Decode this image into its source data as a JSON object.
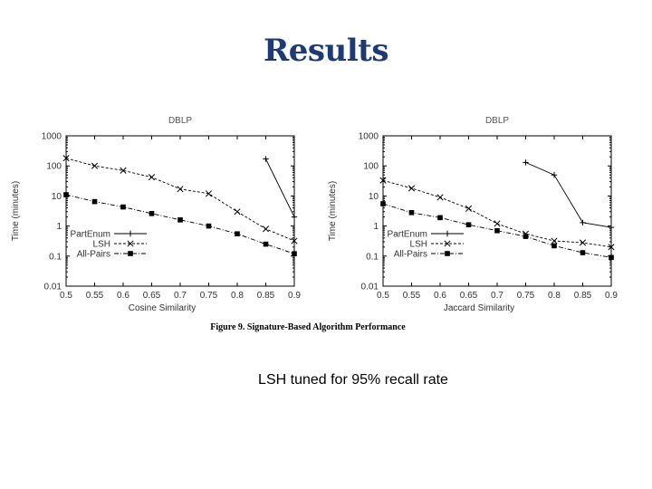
{
  "slide": {
    "title": "Results",
    "figure_caption": "Figure 9.  Signature-Based Algorithm Performance",
    "footnote": "LSH tuned for 95% recall rate"
  },
  "chart_data": [
    {
      "type": "line",
      "title": "DBLP",
      "xlabel": "Cosine Similarity",
      "ylabel": "Time (minutes)",
      "yscale": "log",
      "xlim": [
        0.5,
        0.9
      ],
      "ylim": [
        0.01,
        1000
      ],
      "x_ticks": [
        "0.5",
        "0.55",
        "0.6",
        "0.65",
        "0.7",
        "0.75",
        "0.8",
        "0.85",
        "0.9"
      ],
      "y_ticks": [
        "0.01",
        "0.1",
        "1",
        "10",
        "100",
        "1000"
      ],
      "legend_position": "bottom-left",
      "series": [
        {
          "name": "PartEnum",
          "marker": "plus",
          "dash": "",
          "x": [
            0.85,
            0.9
          ],
          "y": [
            170,
            2
          ]
        },
        {
          "name": "LSH",
          "marker": "cross",
          "dash": "3,2",
          "x": [
            0.5,
            0.55,
            0.6,
            0.65,
            0.7,
            0.75,
            0.8,
            0.85,
            0.9
          ],
          "y": [
            180,
            100,
            70,
            42,
            17,
            12,
            3,
            0.8,
            0.32
          ]
        },
        {
          "name": "All-Pairs",
          "marker": "square",
          "dash": "5,2,1,2",
          "x": [
            0.5,
            0.55,
            0.6,
            0.65,
            0.7,
            0.75,
            0.8,
            0.85,
            0.9
          ],
          "y": [
            11,
            6.5,
            4.3,
            2.6,
            1.6,
            1.0,
            0.55,
            0.25,
            0.12
          ]
        }
      ]
    },
    {
      "type": "line",
      "title": "DBLP",
      "xlabel": "Jaccard Similarity",
      "ylabel": "Time (minutes)",
      "yscale": "log",
      "xlim": [
        0.5,
        0.9
      ],
      "ylim": [
        0.01,
        1000
      ],
      "x_ticks": [
        "0.5",
        "0.55",
        "0.6",
        "0.65",
        "0.7",
        "0.75",
        "0.8",
        "0.85",
        "0.9"
      ],
      "y_ticks": [
        "0.01",
        "0.1",
        "1",
        "10",
        "100",
        "1000"
      ],
      "legend_position": "bottom-left",
      "series": [
        {
          "name": "PartEnum",
          "marker": "plus",
          "dash": "",
          "x": [
            0.75,
            0.8,
            0.85,
            0.9
          ],
          "y": [
            130,
            50,
            1.3,
            0.9
          ]
        },
        {
          "name": "LSH",
          "marker": "cross",
          "dash": "3,2",
          "x": [
            0.5,
            0.55,
            0.6,
            0.65,
            0.7,
            0.75,
            0.8,
            0.85,
            0.9
          ],
          "y": [
            33,
            18,
            9,
            3.8,
            1.2,
            0.55,
            0.32,
            0.28,
            0.2
          ]
        },
        {
          "name": "All-Pairs",
          "marker": "square",
          "dash": "5,2,1,2",
          "x": [
            0.5,
            0.55,
            0.6,
            0.65,
            0.7,
            0.75,
            0.8,
            0.85,
            0.9
          ],
          "y": [
            5.5,
            2.8,
            1.9,
            1.1,
            0.7,
            0.45,
            0.22,
            0.13,
            0.09
          ]
        }
      ]
    }
  ]
}
